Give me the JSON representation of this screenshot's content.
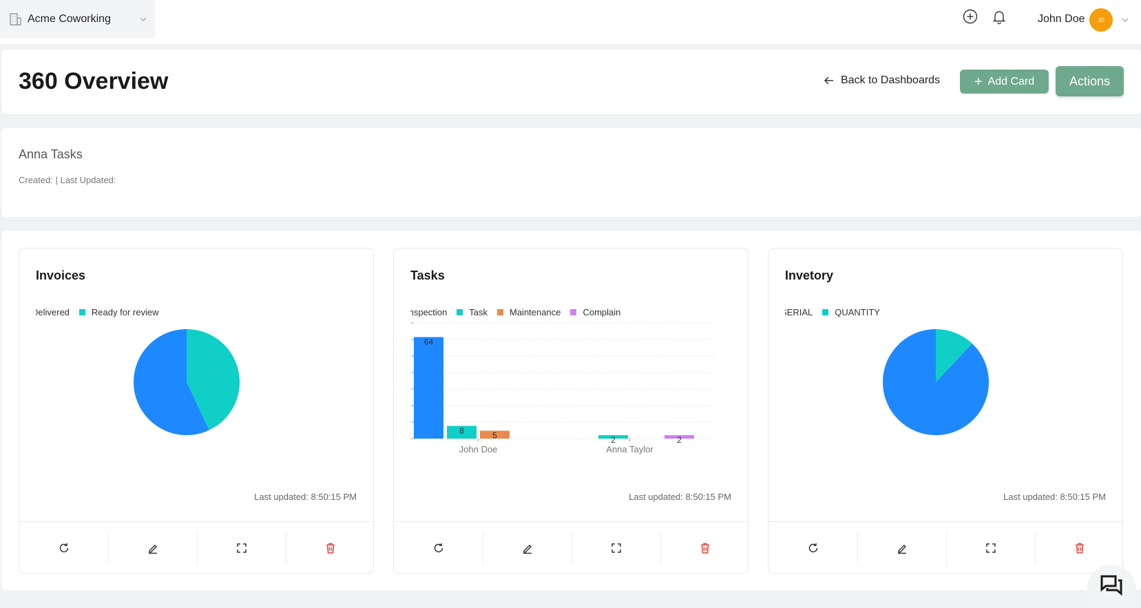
{
  "topbar": {
    "org_name": "Acme Coworking",
    "org_icon": "building-icon",
    "user_name": "John Doe",
    "avatar_initials": "JD",
    "avatar_color": "#f59e0b"
  },
  "header": {
    "title": "360 Overview",
    "back_label": "Back to Dashboards",
    "add_card_label": "Add Card",
    "actions_label": "Actions",
    "accent": "#6fa98d"
  },
  "info": {
    "title": "Anna Tasks",
    "meta": "Created: | Last Updated:"
  },
  "widgets": [
    {
      "title": "Invoices",
      "legend": [
        {
          "label": "Delivered",
          "color": "#1e88ff"
        },
        {
          "label": "Ready for review",
          "color": "#0fcfc6"
        }
      ],
      "last_updated": "Last updated: 8:50:15 PM"
    },
    {
      "title": "Tasks",
      "legend": [
        {
          "label": "Inspection",
          "color": "#1e88ff"
        },
        {
          "label": "Task",
          "color": "#0fcfc6"
        },
        {
          "label": "Maintenance",
          "color": "#ea8a4d"
        },
        {
          "label": "Complain",
          "color": "#d080f0"
        }
      ],
      "last_updated": "Last updated: 8:50:15 PM"
    },
    {
      "title": "Invetory",
      "legend": [
        {
          "label": "SERIAL",
          "color": "#1e88ff"
        },
        {
          "label": "QUANTITY",
          "color": "#0fcfc6"
        }
      ],
      "last_updated": "Last updated: 8:50:15 PM"
    }
  ],
  "chart_data": [
    {
      "type": "pie",
      "labels": [
        "Delivered",
        "Ready for review"
      ],
      "values": [
        57,
        43
      ],
      "colors": [
        "#1e88ff",
        "#0fcfc6"
      ]
    },
    {
      "type": "bar",
      "categories": [
        "John Doe",
        "Anna Taylor"
      ],
      "series": [
        {
          "name": "Inspection",
          "values": [
            64,
            0
          ],
          "color": "#1e88ff"
        },
        {
          "name": "Task",
          "values": [
            8,
            2
          ],
          "color": "#0fcfc6"
        },
        {
          "name": "Maintenance",
          "values": [
            5,
            0
          ],
          "color": "#ea8a4d"
        },
        {
          "name": "Complain",
          "values": [
            0,
            2
          ],
          "color": "#d080f0"
        }
      ],
      "ylim": [
        0,
        70
      ],
      "grid": true
    },
    {
      "type": "pie",
      "labels": [
        "SERIAL",
        "QUANTITY"
      ],
      "values": [
        88,
        12
      ],
      "colors": [
        "#1e88ff",
        "#0fcfc6"
      ]
    }
  ]
}
